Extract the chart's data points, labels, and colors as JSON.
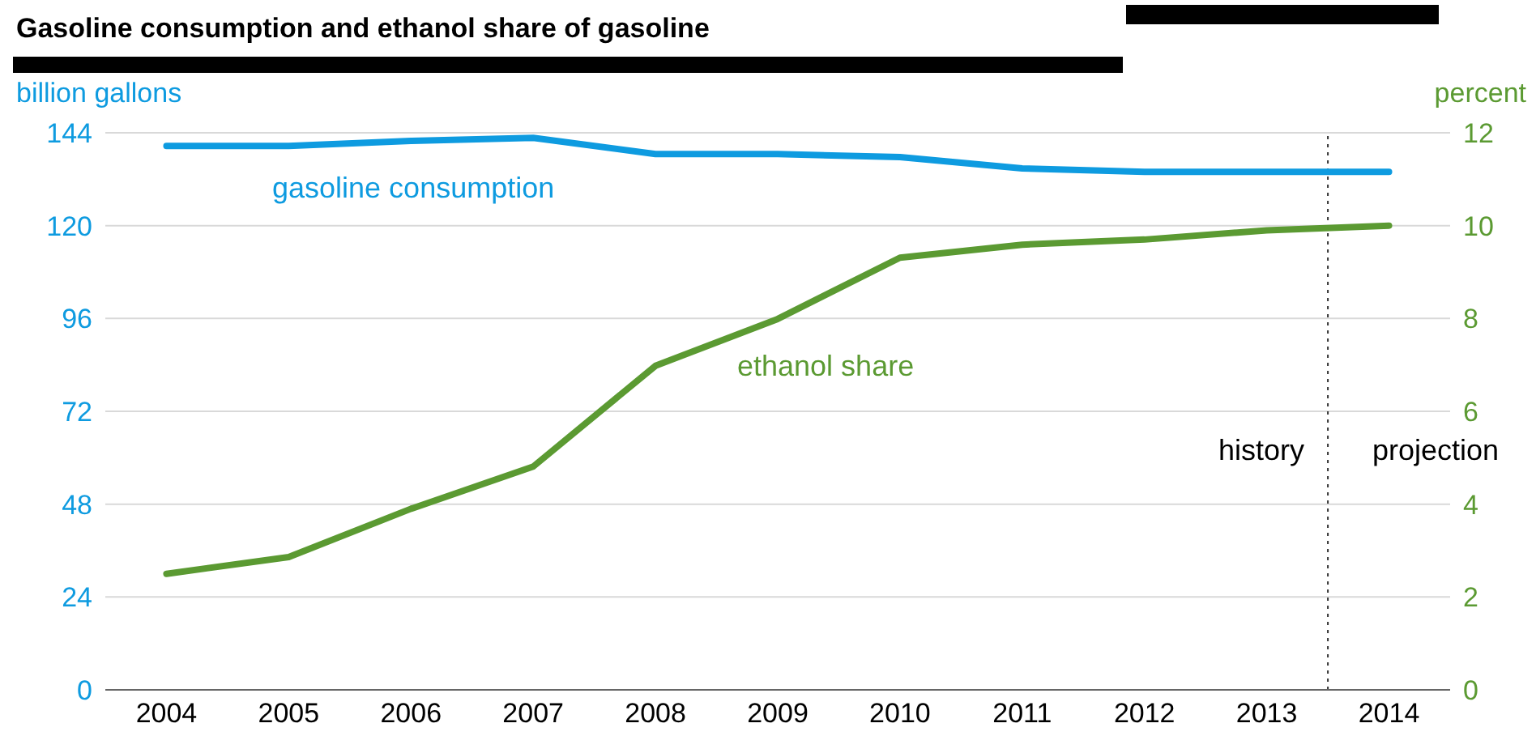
{
  "chart_data": {
    "type": "line",
    "title": "Gasoline consumption and ethanol share of gasoline",
    "ylabel": "billion gallons",
    "y2label": "percent",
    "x": [
      2004,
      2005,
      2006,
      2007,
      2008,
      2009,
      2010,
      2011,
      2012,
      2013,
      2014
    ],
    "xlim": [
      2003.5,
      2014.5
    ],
    "xticks": [
      2004,
      2005,
      2006,
      2007,
      2008,
      2009,
      2010,
      2011,
      2012,
      2013,
      2014
    ],
    "series": [
      {
        "name": "gasoline consumption",
        "color": "#0e9be0",
        "values": [
          140.6,
          140.6,
          141.9,
          142.7,
          138.5,
          138.5,
          137.7,
          134.8,
          133.9,
          133.9,
          133.9
        ]
      },
      {
        "name": "ethanol share",
        "color": "#5b9a32",
        "axis": "y2",
        "values": [
          2.5,
          2.86,
          3.9,
          4.81,
          6.98,
          7.99,
          9.31,
          9.59,
          9.7,
          9.9,
          10.0
        ]
      }
    ],
    "ylim": [
      0,
      144
    ],
    "yticks": [
      0,
      24,
      48,
      72,
      96,
      120,
      144
    ],
    "y2lim": [
      0,
      12
    ],
    "y2ticks": [
      0,
      2,
      4,
      6,
      8,
      10,
      12
    ],
    "ref_lines": [
      {
        "axis": "x",
        "value": 2013.5,
        "line_style": "dotted",
        "color": "#333333"
      }
    ],
    "annotations": [
      "history",
      "projection"
    ],
    "grid": "y",
    "legend": false,
    "marker": "none",
    "line_style": "solid"
  }
}
